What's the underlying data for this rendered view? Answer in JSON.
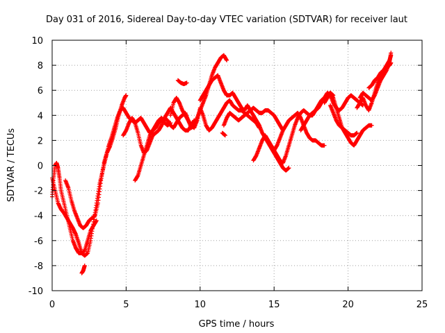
{
  "chart_data": {
    "type": "scatter",
    "title": "Day 031 of 2016, Sidereal Day-to-day VTEC variation (SDTVAR) for receiver laut",
    "xlabel": "GPS time / hours",
    "ylabel": "SDTVAR / TECUs",
    "xlim": [
      0,
      25
    ],
    "ylim": [
      -10,
      10
    ],
    "xticks": [
      "0",
      "5",
      "10",
      "15",
      "20",
      "25"
    ],
    "yticks": [
      "-10",
      "-8",
      "-6",
      "-4",
      "-2",
      "0",
      "2",
      "4",
      "6",
      "8",
      "10"
    ],
    "grid": true,
    "legend": "none",
    "marker": "+",
    "color": "#ff0000",
    "series": [
      {
        "x": [
          0.0,
          0.2,
          0.4,
          0.6,
          0.8,
          1.0,
          1.2,
          1.4,
          1.6,
          1.8,
          2.0,
          2.2,
          2.4,
          2.6,
          2.8,
          3.0,
          3.2,
          3.4,
          3.6,
          3.8,
          4.0,
          4.2,
          4.4,
          4.6,
          4.8,
          5.0,
          5.2,
          5.4,
          5.6,
          5.8,
          6.0,
          6.2,
          6.4,
          6.6,
          6.8,
          7.0,
          7.2,
          7.4,
          7.6,
          7.8,
          8.0
        ],
        "y": [
          -1.0,
          -2.0,
          -3.0,
          -3.5,
          -3.8,
          -4.2,
          -4.6,
          -5.0,
          -5.5,
          -6.2,
          -7.0,
          -7.2,
          -7.0,
          -6.0,
          -4.5,
          -3.0,
          -1.5,
          -0.5,
          0.5,
          1.5,
          2.2,
          3.0,
          3.8,
          4.4,
          4.6,
          4.2,
          3.8,
          3.6,
          3.4,
          3.6,
          3.8,
          3.4,
          3.0,
          2.6,
          2.8,
          3.2,
          3.6,
          3.8,
          3.4,
          3.2,
          3.4
        ]
      },
      {
        "x": [
          0.0,
          0.1,
          0.2,
          0.3,
          0.4,
          0.5,
          0.6,
          0.8,
          1.0,
          1.2,
          1.4,
          1.6,
          1.8,
          2.0,
          2.2,
          2.4,
          2.6,
          2.8,
          3.0
        ],
        "y": [
          -2.5,
          -1.0,
          0.0,
          0.2,
          -0.2,
          -1.0,
          -2.0,
          -3.0,
          -4.0,
          -5.0,
          -6.0,
          -6.6,
          -7.0,
          -7.0,
          -6.8,
          -6.0,
          -5.2,
          -4.8,
          -4.4
        ]
      },
      {
        "x": [
          0.9,
          1.1,
          1.3,
          1.5,
          1.7,
          1.9,
          2.1,
          2.3,
          2.5,
          2.7,
          2.9,
          3.1,
          3.3,
          3.5,
          3.7,
          3.9,
          4.1,
          4.3,
          4.5,
          4.7,
          4.9,
          5.0
        ],
        "y": [
          -1.2,
          -1.8,
          -2.8,
          -3.6,
          -4.2,
          -4.8,
          -5.0,
          -4.8,
          -4.4,
          -4.2,
          -4.0,
          -3.0,
          -1.2,
          0.2,
          1.0,
          1.5,
          2.2,
          3.0,
          4.0,
          4.8,
          5.4,
          5.6
        ]
      },
      {
        "x": [
          2.0,
          2.1,
          2.2
        ],
        "y": [
          -8.6,
          -8.4,
          -8.0
        ]
      },
      {
        "x": [
          5.6,
          5.8,
          6.0,
          6.2,
          6.4,
          6.6,
          6.8,
          7.0,
          7.2,
          7.4,
          7.6,
          7.8,
          8.0,
          8.2,
          8.4,
          8.6,
          8.8,
          9.0,
          9.2,
          9.4,
          9.6,
          9.8,
          10.0,
          10.2,
          10.4,
          10.6,
          10.8,
          11.0,
          11.2,
          11.4,
          11.6,
          11.8
        ],
        "y": [
          -1.2,
          -0.8,
          0.0,
          0.8,
          1.6,
          2.4,
          2.8,
          3.0,
          3.4,
          3.6,
          3.8,
          3.6,
          3.2,
          3.0,
          3.4,
          3.8,
          4.0,
          4.2,
          3.6,
          3.0,
          3.2,
          3.8,
          4.4,
          5.0,
          5.6,
          6.4,
          7.2,
          7.8,
          8.2,
          8.6,
          8.8,
          8.4
        ]
      },
      {
        "x": [
          4.8,
          5.0,
          5.2,
          5.4,
          5.6,
          5.8,
          6.0,
          6.2,
          6.4,
          6.6,
          6.8,
          7.0,
          7.2,
          7.4,
          7.6,
          7.8,
          8.0,
          8.2,
          8.4,
          8.6,
          8.8,
          9.0,
          9.2,
          9.4,
          9.6
        ],
        "y": [
          2.4,
          2.8,
          3.4,
          3.8,
          3.4,
          2.6,
          1.6,
          1.0,
          1.2,
          1.8,
          2.4,
          2.6,
          2.8,
          3.2,
          3.8,
          4.2,
          4.6,
          4.2,
          3.8,
          3.4,
          3.0,
          2.8,
          2.8,
          3.2,
          3.6
        ]
      },
      {
        "x": [
          8.0,
          8.2,
          8.4,
          8.6,
          8.8,
          9.0,
          9.2,
          9.4,
          9.6,
          9.8,
          10.0,
          10.2,
          10.4,
          10.6,
          10.8,
          11.0,
          11.2,
          11.4,
          11.6,
          11.8,
          12.0,
          12.2,
          12.4,
          12.6,
          12.8,
          13.0,
          13.2,
          13.4,
          13.6,
          13.8,
          14.0
        ],
        "y": [
          4.0,
          5.0,
          5.4,
          5.0,
          4.4,
          4.0,
          3.6,
          3.2,
          3.0,
          3.6,
          4.6,
          4.0,
          3.2,
          2.8,
          3.0,
          3.4,
          3.8,
          4.2,
          4.6,
          5.0,
          5.2,
          4.8,
          4.6,
          4.4,
          4.4,
          4.2,
          4.0,
          3.8,
          3.6,
          3.4,
          3.0
        ]
      },
      {
        "x": [
          8.5,
          8.7,
          8.9,
          9.1
        ],
        "y": [
          6.8,
          6.6,
          6.5,
          6.6
        ]
      },
      {
        "x": [
          10.0,
          10.2,
          10.4,
          10.6,
          10.8,
          11.0,
          11.2,
          11.4,
          11.6,
          11.8,
          12.0,
          12.2,
          12.4,
          12.6,
          12.8,
          13.0,
          13.2,
          13.4,
          13.6,
          13.8,
          14.0,
          14.2,
          14.4,
          14.6,
          14.8,
          15.0,
          15.2,
          15.4,
          15.6,
          15.8,
          16.0
        ],
        "y": [
          5.2,
          5.6,
          6.0,
          6.4,
          6.8,
          7.0,
          7.2,
          6.6,
          6.0,
          5.6,
          5.6,
          5.8,
          5.4,
          5.0,
          4.6,
          4.4,
          4.8,
          4.4,
          4.0,
          3.6,
          3.2,
          2.6,
          2.2,
          1.8,
          1.4,
          1.0,
          0.6,
          0.2,
          -0.2,
          -0.4,
          -0.2
        ]
      },
      {
        "x": [
          11.6,
          11.8,
          12.0,
          12.2,
          12.4,
          12.6,
          12.8,
          13.0,
          13.2,
          13.4,
          13.6,
          13.8,
          14.0,
          14.2,
          14.4,
          14.6,
          14.8,
          15.0,
          15.2,
          15.4,
          15.6
        ],
        "y": [
          3.2,
          3.8,
          4.2,
          4.0,
          3.8,
          3.6,
          3.8,
          4.0,
          4.2,
          4.4,
          4.6,
          4.4,
          4.2,
          4.2,
          4.4,
          4.4,
          4.2,
          4.0,
          3.6,
          3.2,
          2.8
        ]
      },
      {
        "x": [
          11.5,
          11.7
        ],
        "y": [
          2.6,
          2.4
        ]
      },
      {
        "x": [
          13.6,
          13.8,
          14.0,
          14.2,
          14.4,
          14.6,
          14.8,
          15.0,
          15.2,
          15.4,
          15.6,
          15.8,
          16.0,
          16.2,
          16.4,
          16.6,
          16.8,
          17.0,
          17.2,
          17.4,
          17.6,
          17.8,
          18.0,
          18.2,
          18.4,
          18.6,
          18.8,
          19.0
        ],
        "y": [
          0.4,
          0.8,
          1.4,
          2.0,
          2.4,
          2.0,
          1.6,
          1.2,
          0.8,
          0.4,
          0.2,
          0.8,
          1.6,
          2.4,
          3.2,
          3.8,
          4.2,
          4.4,
          4.2,
          4.0,
          4.0,
          4.4,
          4.8,
          5.2,
          5.4,
          5.6,
          5.8,
          5.6
        ]
      },
      {
        "x": [
          15.0,
          15.2,
          15.4,
          15.6,
          15.8,
          16.0,
          16.2,
          16.4,
          16.6,
          16.8,
          17.0,
          17.2,
          17.4,
          17.6,
          17.8,
          18.0,
          18.2,
          18.4
        ],
        "y": [
          1.2,
          1.6,
          2.2,
          2.8,
          3.2,
          3.6,
          3.8,
          4.0,
          4.2,
          3.8,
          3.2,
          2.6,
          2.2,
          2.0,
          2.0,
          1.8,
          1.6,
          1.6
        ]
      },
      {
        "x": [
          16.8,
          17.0,
          17.2,
          17.4,
          17.6,
          17.8,
          18.0,
          18.2,
          18.4,
          18.6,
          18.8,
          19.0,
          19.2,
          19.4,
          19.6,
          19.8,
          20.0,
          20.2,
          20.4,
          20.6,
          20.8,
          21.0
        ],
        "y": [
          2.8,
          3.2,
          3.6,
          4.0,
          4.2,
          4.4,
          4.6,
          5.0,
          5.4,
          5.8,
          5.6,
          5.0,
          4.6,
          4.4,
          4.6,
          5.0,
          5.4,
          5.6,
          5.4,
          5.2,
          5.0,
          4.8
        ]
      },
      {
        "x": [
          18.4,
          18.6,
          18.8,
          19.0,
          19.2,
          19.4,
          19.6,
          19.8,
          20.0,
          20.2,
          20.4,
          20.6,
          20.8,
          21.0,
          21.2,
          21.4,
          21.6
        ],
        "y": [
          5.0,
          5.4,
          5.8,
          5.4,
          4.6,
          3.8,
          3.0,
          2.6,
          2.2,
          1.8,
          1.6,
          2.0,
          2.4,
          2.8,
          3.0,
          3.2,
          3.2
        ]
      },
      {
        "x": [
          18.8,
          19.0,
          19.2,
          19.4,
          19.6,
          19.8,
          20.0,
          20.2,
          20.4,
          20.6
        ],
        "y": [
          4.8,
          4.2,
          3.6,
          3.2,
          3.0,
          2.8,
          2.6,
          2.4,
          2.4,
          2.6
        ]
      },
      {
        "x": [
          20.6,
          20.8,
          21.0,
          21.2,
          21.4,
          21.6,
          21.8,
          22.0,
          22.2,
          22.4,
          22.6,
          22.8,
          22.9
        ],
        "y": [
          4.6,
          5.0,
          5.4,
          4.8,
          4.4,
          5.0,
          5.8,
          6.6,
          7.2,
          7.6,
          8.0,
          8.4,
          8.8
        ]
      },
      {
        "x": [
          20.8,
          21.0,
          21.2,
          21.4,
          21.6,
          21.8,
          22.0,
          22.2,
          22.4,
          22.6,
          22.8,
          22.9
        ],
        "y": [
          5.4,
          5.8,
          5.6,
          5.4,
          5.2,
          5.6,
          6.2,
          6.8,
          7.2,
          7.6,
          8.2,
          9.0
        ]
      },
      {
        "x": [
          21.4,
          21.6,
          21.8,
          22.0,
          22.2,
          22.4,
          22.6,
          22.8,
          22.9
        ],
        "y": [
          6.2,
          6.4,
          6.8,
          7.0,
          7.4,
          7.6,
          7.8,
          8.0,
          8.2
        ]
      }
    ]
  }
}
